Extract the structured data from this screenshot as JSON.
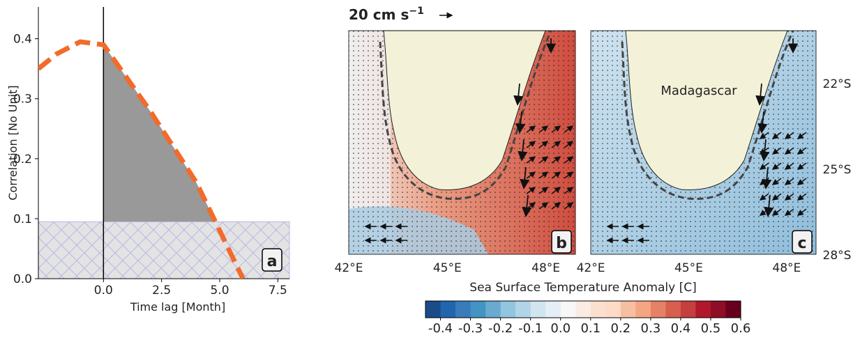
{
  "chart_data": [
    {
      "type": "line",
      "panel_label": "a",
      "x_label": "Time lag [Month]",
      "y_label": "Correlation [No Unit]",
      "x": [
        -2.8,
        -2,
        -1,
        0,
        1,
        2,
        3,
        4,
        5,
        6
      ],
      "series": [
        {
          "color": "#f26b2b",
          "values": [
            0.35,
            0.375,
            0.395,
            0.39,
            0.335,
            0.28,
            0.22,
            0.16,
            0.08,
            0.0
          ]
        }
      ],
      "threshold": 0.095,
      "xlim": [
        -2.8,
        8
      ],
      "ylim": [
        0,
        0.453
      ],
      "xticks": [
        {
          "value": 0,
          "label": "0.0"
        },
        2.5,
        {
          "value": 5,
          "label": "5.0"
        },
        7.5
      ],
      "yticks": [
        {
          "value": 0,
          "label": "0.0"
        },
        0.1,
        0.2,
        0.3,
        0.4
      ]
    },
    {
      "type": "map",
      "scale_label": "20 cm s",
      "scale_exponent": "−1",
      "panels": [
        {
          "panel_label": "b",
          "xticks": [
            "42°E",
            "45°E",
            "48°E"
          ]
        },
        {
          "panel_label": "c",
          "annotation": "Madagascar",
          "xticks": [
            "42°E",
            "45°E",
            "48°E"
          ],
          "yticks": [
            "22°S",
            "25°S",
            "28°S"
          ]
        }
      ],
      "colorbar": {
        "title": "Sea Surface Temperature Anomaly [C]",
        "lim": [
          -0.45,
          0.6
        ],
        "colors": [
          "#1a4c8a",
          "#2166ac",
          "#3a7bb9",
          "#4393c3",
          "#6aa9d0",
          "#92c5de",
          "#b1d5e7",
          "#d1e5f0",
          "#e4eef5",
          "#f7f7f7",
          "#fbece3",
          "#fbe0d0",
          "#fddbc7",
          "#f6bfa2",
          "#f4a582",
          "#e58167",
          "#d6604d",
          "#c53f3e",
          "#b2182b",
          "#8f0d26",
          "#67001f"
        ],
        "ticks": [
          -0.4,
          -0.3,
          -0.2,
          -0.1,
          {
            "value": 0,
            "label": "0.0"
          },
          0.1,
          0.2,
          0.3,
          0.4,
          0.5,
          0.6
        ]
      }
    }
  ]
}
